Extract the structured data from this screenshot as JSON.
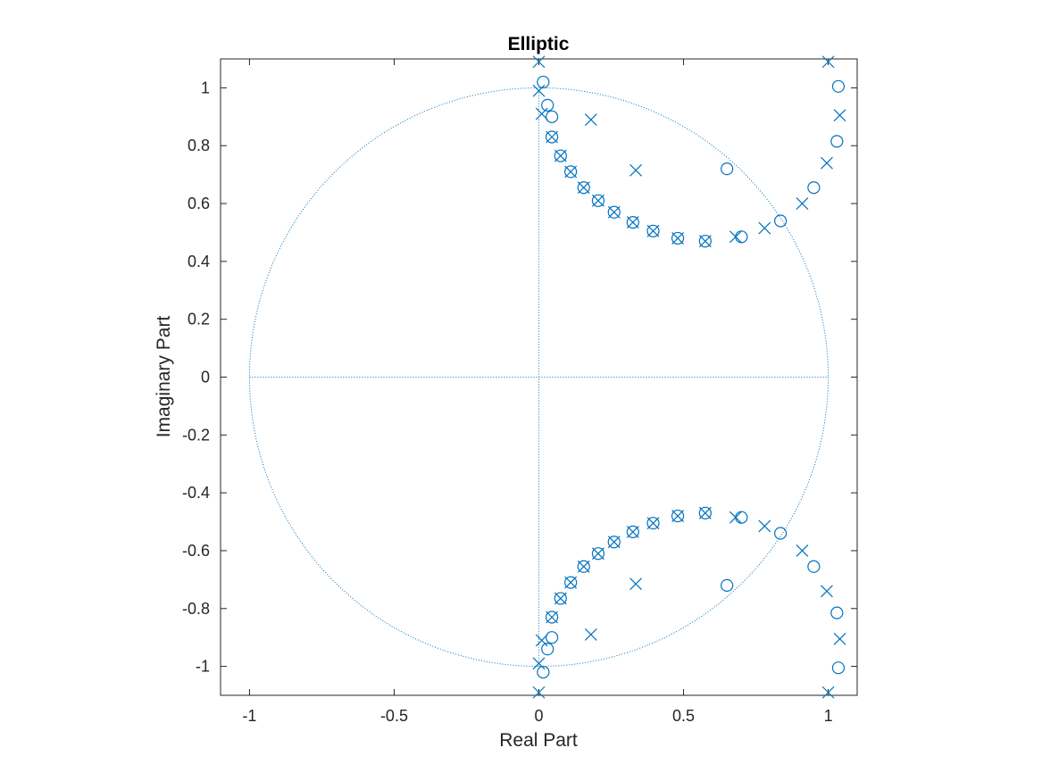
{
  "colors": {
    "marker": "#0072bd",
    "axis": "#262626",
    "background": "#ffffff"
  },
  "chart_data": {
    "type": "scatter",
    "title": "Elliptic",
    "xlabel": "Real Part",
    "ylabel": "Imaginary Part",
    "xlim": [
      -1.1,
      1.1
    ],
    "ylim": [
      -1.1,
      1.1
    ],
    "xticks": [
      -1,
      -0.5,
      0,
      0.5,
      1
    ],
    "xtick_labels": [
      "-1",
      "-0.5",
      "0",
      "0.5",
      "1"
    ],
    "yticks": [
      1,
      0.8,
      0.6,
      0.4,
      0.2,
      0,
      -0.2,
      -0.4,
      -0.6,
      -0.8,
      -1
    ],
    "ytick_labels": [
      "1",
      "0.8",
      "0.6",
      "0.4",
      "0.2",
      "0",
      "-0.2",
      "-0.4",
      "-0.6",
      "-0.8",
      "-1"
    ],
    "unit_circle": true,
    "grid": false,
    "series": [
      {
        "marker": "o",
        "points": [
          [
            0.015,
            1.02
          ],
          [
            0.03,
            0.94
          ],
          [
            0.045,
            0.9
          ],
          [
            0.045,
            0.83
          ],
          [
            0.075,
            0.765
          ],
          [
            0.11,
            0.71
          ],
          [
            0.155,
            0.655
          ],
          [
            0.205,
            0.61
          ],
          [
            0.26,
            0.57
          ],
          [
            0.325,
            0.535
          ],
          [
            0.395,
            0.505
          ],
          [
            0.48,
            0.48
          ],
          [
            0.575,
            0.47
          ],
          [
            0.7,
            0.485
          ],
          [
            0.65,
            0.72
          ],
          [
            0.835,
            0.54
          ],
          [
            0.95,
            0.655
          ],
          [
            1.03,
            0.815
          ],
          [
            1.035,
            1.005
          ],
          [
            0.015,
            -1.02
          ],
          [
            0.03,
            -0.94
          ],
          [
            0.045,
            -0.9
          ],
          [
            0.045,
            -0.83
          ],
          [
            0.075,
            -0.765
          ],
          [
            0.11,
            -0.71
          ],
          [
            0.155,
            -0.655
          ],
          [
            0.205,
            -0.61
          ],
          [
            0.26,
            -0.57
          ],
          [
            0.325,
            -0.535
          ],
          [
            0.395,
            -0.505
          ],
          [
            0.48,
            -0.48
          ],
          [
            0.575,
            -0.47
          ],
          [
            0.7,
            -0.485
          ],
          [
            0.65,
            -0.72
          ],
          [
            0.835,
            -0.54
          ],
          [
            0.95,
            -0.655
          ],
          [
            1.03,
            -0.815
          ],
          [
            1.035,
            -1.005
          ]
        ]
      },
      {
        "marker": "x",
        "points": [
          [
            0.0,
            1.09
          ],
          [
            0.0,
            0.99
          ],
          [
            0.01,
            0.91
          ],
          [
            0.045,
            0.83
          ],
          [
            0.075,
            0.765
          ],
          [
            0.11,
            0.71
          ],
          [
            0.155,
            0.655
          ],
          [
            0.205,
            0.61
          ],
          [
            0.26,
            0.57
          ],
          [
            0.325,
            0.535
          ],
          [
            0.395,
            0.505
          ],
          [
            0.48,
            0.48
          ],
          [
            0.575,
            0.47
          ],
          [
            0.68,
            0.485
          ],
          [
            0.78,
            0.515
          ],
          [
            0.91,
            0.6
          ],
          [
            0.995,
            0.74
          ],
          [
            1.04,
            0.905
          ],
          [
            1.0,
            1.09
          ],
          [
            0.18,
            0.89
          ],
          [
            0.335,
            0.715
          ],
          [
            0.0,
            -1.09
          ],
          [
            0.0,
            -0.99
          ],
          [
            0.01,
            -0.91
          ],
          [
            0.045,
            -0.83
          ],
          [
            0.075,
            -0.765
          ],
          [
            0.11,
            -0.71
          ],
          [
            0.155,
            -0.655
          ],
          [
            0.205,
            -0.61
          ],
          [
            0.26,
            -0.57
          ],
          [
            0.325,
            -0.535
          ],
          [
            0.395,
            -0.505
          ],
          [
            0.48,
            -0.48
          ],
          [
            0.575,
            -0.47
          ],
          [
            0.68,
            -0.485
          ],
          [
            0.78,
            -0.515
          ],
          [
            0.91,
            -0.6
          ],
          [
            0.995,
            -0.74
          ],
          [
            1.04,
            -0.905
          ],
          [
            1.0,
            -1.09
          ],
          [
            0.18,
            -0.89
          ],
          [
            0.335,
            -0.715
          ]
        ]
      }
    ]
  }
}
